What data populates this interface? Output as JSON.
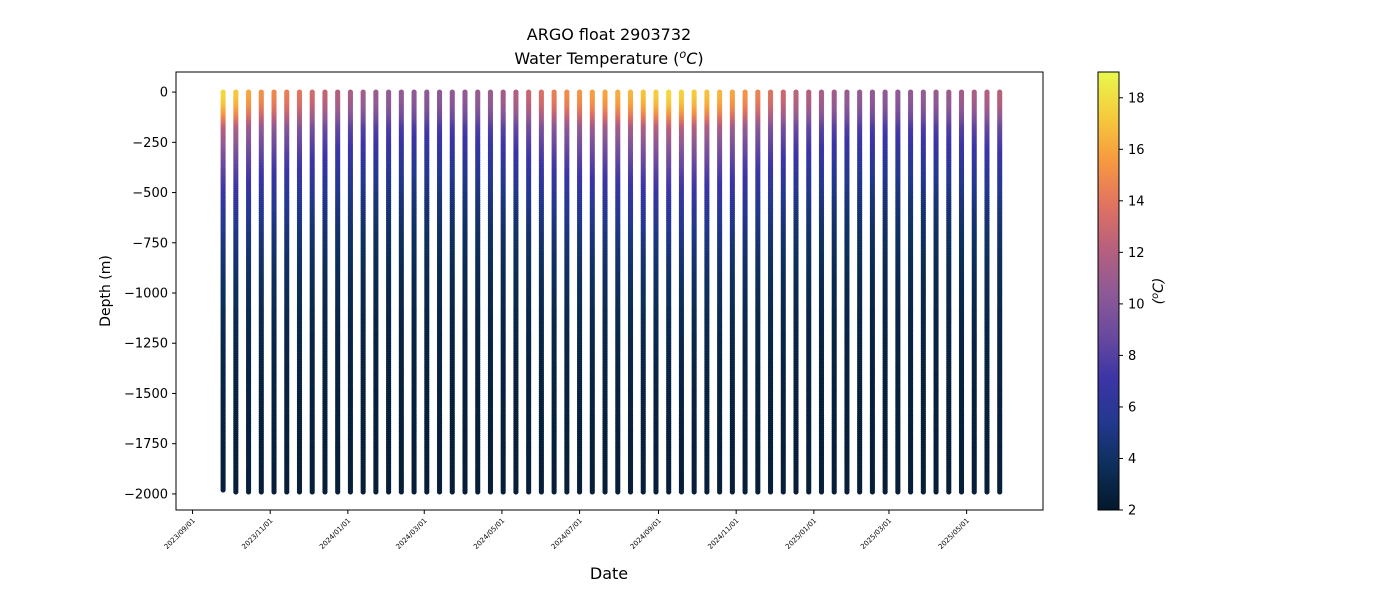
{
  "chart_data": {
    "type": "scatter",
    "title": "ARGO float 2903732",
    "subtitle_prefix": "Water Temperature (",
    "subtitle_math": "oC",
    "subtitle_suffix": ")",
    "xlabel": "Date",
    "ylabel": "Depth (m)",
    "ylim": [
      -2080,
      100
    ],
    "xlim": [
      "2023-08-19",
      "2025-06-30"
    ],
    "yticks": [
      0,
      -250,
      -500,
      -750,
      -1000,
      -1250,
      -1500,
      -1750,
      -2000
    ],
    "ytick_labels": [
      "0",
      "−250",
      "−500",
      "−750",
      "−1000",
      "−1250",
      "−1500",
      "−1750",
      "−2000"
    ],
    "xticks": [
      "2023-09-01",
      "2023-11-01",
      "2024-01-01",
      "2024-03-01",
      "2024-05-01",
      "2024-07-01",
      "2024-09-01",
      "2024-11-01",
      "2025-01-01",
      "2025-03-01",
      "2025-05-01"
    ],
    "xtick_labels": [
      "2023/09/01",
      "2023/11/01",
      "2024/01/01",
      "2024/03/01",
      "2024/05/01",
      "2024/07/01",
      "2024/09/01",
      "2024/11/01",
      "2025/01/01",
      "2025/03/01",
      "2025/05/01"
    ],
    "grid": false,
    "colormap": "thermal",
    "colormap_stops": [
      "#04182b",
      "#0d2f5a",
      "#23388f",
      "#3c35a6",
      "#6a4a9e",
      "#8f5a95",
      "#b8607c",
      "#e2745f",
      "#f79a40",
      "#f5cc3c",
      "#e8f84d"
    ],
    "colorbar": {
      "label": "(oC)",
      "range": [
        2,
        19
      ],
      "ticks": [
        2,
        4,
        6,
        8,
        10,
        12,
        14,
        16,
        18
      ],
      "tick_labels": [
        "2",
        "4",
        "6",
        "8",
        "10",
        "12",
        "14",
        "16",
        "18"
      ]
    },
    "profiles": {
      "dates": [
        "2023-09-25",
        "2023-10-05",
        "2023-10-15",
        "2023-10-25",
        "2023-11-04",
        "2023-11-14",
        "2023-11-24",
        "2023-12-04",
        "2023-12-14",
        "2023-12-24",
        "2024-01-03",
        "2024-01-13",
        "2024-01-23",
        "2024-02-02",
        "2024-02-12",
        "2024-02-22",
        "2024-03-03",
        "2024-03-13",
        "2024-03-23",
        "2024-04-02",
        "2024-04-12",
        "2024-04-22",
        "2024-05-02",
        "2024-05-12",
        "2024-05-22",
        "2024-06-01",
        "2024-06-11",
        "2024-06-21",
        "2024-07-01",
        "2024-07-11",
        "2024-07-21",
        "2024-07-31",
        "2024-08-10",
        "2024-08-20",
        "2024-08-30",
        "2024-09-09",
        "2024-09-19",
        "2024-09-29",
        "2024-10-09",
        "2024-10-19",
        "2024-10-29",
        "2024-11-08",
        "2024-11-18",
        "2024-11-28",
        "2024-12-08",
        "2024-12-18",
        "2024-12-28",
        "2025-01-07",
        "2025-01-17",
        "2025-01-27",
        "2025-02-06",
        "2025-02-16",
        "2025-02-26",
        "2025-03-08",
        "2025-03-18",
        "2025-03-28",
        "2025-04-07",
        "2025-04-17",
        "2025-04-27",
        "2025-05-07",
        "2025-05-17",
        "2025-05-27"
      ],
      "surface_temperature": [
        17.8,
        17.2,
        16.0,
        15.2,
        14.8,
        14.4,
        14.0,
        13.2,
        12.6,
        12.0,
        11.6,
        11.2,
        11.0,
        10.8,
        10.6,
        10.5,
        10.4,
        10.4,
        10.5,
        10.6,
        10.8,
        11.0,
        11.4,
        12.0,
        12.8,
        13.6,
        14.4,
        15.0,
        15.4,
        15.8,
        16.0,
        16.3,
        16.6,
        17.0,
        17.4,
        17.8,
        17.6,
        17.3,
        17.0,
        16.6,
        16.0,
        15.4,
        14.6,
        13.8,
        13.0,
        12.4,
        12.0,
        11.6,
        11.2,
        10.9,
        10.7,
        10.6,
        10.5,
        10.5,
        10.6,
        10.7,
        10.8,
        11.0,
        11.3,
        11.6,
        12.0,
        12.3
      ],
      "max_depth": [
        -1980,
        -1990,
        -1990,
        -1990,
        -1990,
        -1990,
        -1990,
        -1990,
        -1990,
        -1990,
        -1990,
        -1990,
        -1990,
        -1990,
        -1990,
        -1990,
        -1990,
        -1990,
        -1990,
        -1990,
        -1990,
        -1990,
        -1990,
        -1990,
        -1990,
        -1990,
        -1990,
        -1990,
        -1990,
        -1990,
        -1990,
        -1990,
        -1990,
        -1990,
        -1990,
        -1990,
        -1990,
        -1990,
        -1990,
        -1990,
        -1990,
        -1990,
        -1990,
        -1990,
        -1990,
        -1990,
        -1990,
        -1990,
        -1990,
        -1990,
        -1990,
        -1990,
        -1990,
        -1990,
        -1990,
        -1990,
        -1990,
        -1990,
        -1990,
        -1990,
        -1990,
        -1990
      ]
    }
  }
}
